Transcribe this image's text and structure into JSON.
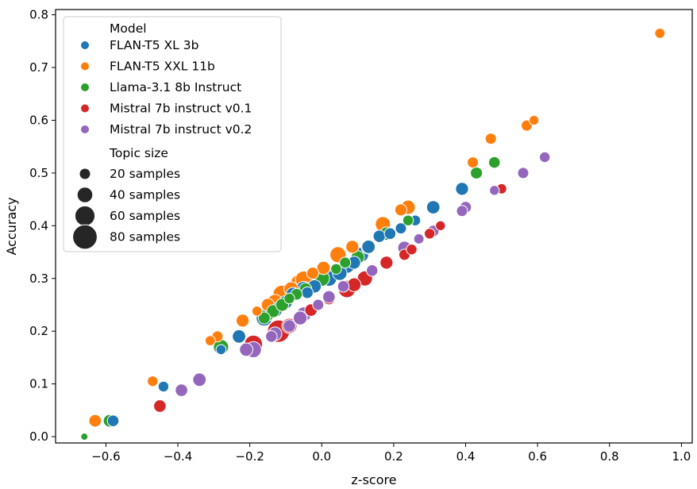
{
  "chart_data": {
    "type": "scatter",
    "title": "",
    "xlabel": "z-score",
    "ylabel": "Accuracy",
    "xlim": [
      -0.74,
      1.03
    ],
    "ylim": [
      -0.012,
      0.81
    ],
    "xticks": [
      "−0.6",
      "−0.4",
      "−0.2",
      "0.0",
      "0.2",
      "0.4",
      "0.6",
      "0.8",
      "1.0"
    ],
    "yticks": [
      "0.0",
      "0.1",
      "0.2",
      "0.3",
      "0.4",
      "0.5",
      "0.6",
      "0.7",
      "0.8"
    ],
    "grid": false,
    "legend": {
      "placement": "upper-left",
      "hue_title": "Model",
      "size_title": "Topic size",
      "size_entries": [
        {
          "label": "20 samples",
          "size": 20
        },
        {
          "label": "40 samples",
          "size": 40
        },
        {
          "label": "60 samples",
          "size": 60
        },
        {
          "label": "80 samples",
          "size": 80
        }
      ]
    },
    "series": [
      {
        "name": "FLAN-T5 XL 3b",
        "color": "#1f77b4",
        "points": [
          [
            -0.58,
            0.03,
            22
          ],
          [
            -0.44,
            0.095,
            18
          ],
          [
            -0.23,
            0.19,
            30
          ],
          [
            -0.28,
            0.165,
            15
          ],
          [
            -0.16,
            0.225,
            42
          ],
          [
            -0.13,
            0.24,
            35
          ],
          [
            -0.1,
            0.255,
            30
          ],
          [
            -0.08,
            0.27,
            32
          ],
          [
            -0.05,
            0.28,
            38
          ],
          [
            -0.02,
            0.285,
            30
          ],
          [
            -0.04,
            0.273,
            22
          ],
          [
            0.02,
            0.3,
            40
          ],
          [
            0.05,
            0.31,
            35
          ],
          [
            0.07,
            0.325,
            42
          ],
          [
            0.09,
            0.33,
            28
          ],
          [
            0.11,
            0.345,
            36
          ],
          [
            0.13,
            0.36,
            30
          ],
          [
            0.16,
            0.38,
            25
          ],
          [
            0.19,
            0.385,
            22
          ],
          [
            0.22,
            0.395,
            20
          ],
          [
            0.26,
            0.41,
            18
          ],
          [
            0.31,
            0.435,
            30
          ],
          [
            0.39,
            0.47,
            28
          ]
        ]
      },
      {
        "name": "FLAN-T5 XXL 11b",
        "color": "#ff7f0e",
        "points": [
          [
            -0.63,
            0.03,
            26
          ],
          [
            -0.47,
            0.105,
            18
          ],
          [
            -0.31,
            0.182,
            16
          ],
          [
            -0.29,
            0.19,
            20
          ],
          [
            -0.22,
            0.22,
            28
          ],
          [
            -0.18,
            0.238,
            15
          ],
          [
            -0.15,
            0.25,
            28
          ],
          [
            -0.13,
            0.255,
            40
          ],
          [
            -0.11,
            0.27,
            52
          ],
          [
            -0.085,
            0.28,
            35
          ],
          [
            -0.06,
            0.29,
            56
          ],
          [
            -0.05,
            0.298,
            46
          ],
          [
            -0.025,
            0.31,
            24
          ],
          [
            0.005,
            0.32,
            30
          ],
          [
            0.045,
            0.345,
            42
          ],
          [
            0.085,
            0.36,
            28
          ],
          [
            0.17,
            0.403,
            38
          ],
          [
            0.22,
            0.43,
            24
          ],
          [
            0.24,
            0.435,
            34
          ],
          [
            0.42,
            0.52,
            20
          ],
          [
            0.47,
            0.565,
            20
          ],
          [
            0.57,
            0.59,
            20
          ],
          [
            0.59,
            0.6,
            14
          ],
          [
            0.94,
            0.765,
            16
          ]
        ]
      },
      {
        "name": "Llama-3.1 8b Instruct",
        "color": "#2ca02c",
        "points": [
          [
            -0.66,
            0.0,
            2
          ],
          [
            -0.59,
            0.03,
            26
          ],
          [
            -0.28,
            0.17,
            38
          ],
          [
            -0.16,
            0.225,
            24
          ],
          [
            -0.15,
            0.232,
            30
          ],
          [
            -0.135,
            0.238,
            28
          ],
          [
            -0.11,
            0.25,
            28
          ],
          [
            -0.09,
            0.262,
            18
          ],
          [
            -0.07,
            0.27,
            22
          ],
          [
            -0.045,
            0.28,
            26
          ],
          [
            0.0,
            0.3,
            40
          ],
          [
            0.04,
            0.318,
            18
          ],
          [
            0.065,
            0.33,
            20
          ],
          [
            0.1,
            0.34,
            30
          ],
          [
            0.13,
            0.36,
            36
          ],
          [
            0.18,
            0.385,
            30
          ],
          [
            0.24,
            0.41,
            18
          ],
          [
            0.43,
            0.5,
            24
          ],
          [
            0.48,
            0.52,
            22
          ]
        ]
      },
      {
        "name": "Mistral 7b instruct v0.1",
        "color": "#d62728",
        "points": [
          [
            -0.45,
            0.058,
            26
          ],
          [
            -0.19,
            0.175,
            52
          ],
          [
            -0.12,
            0.2,
            70
          ],
          [
            -0.09,
            0.21,
            38
          ],
          [
            -0.06,
            0.225,
            34
          ],
          [
            -0.03,
            0.24,
            26
          ],
          [
            0.02,
            0.262,
            26
          ],
          [
            0.07,
            0.28,
            48
          ],
          [
            0.09,
            0.288,
            32
          ],
          [
            0.12,
            0.3,
            38
          ],
          [
            0.18,
            0.33,
            28
          ],
          [
            0.23,
            0.345,
            20
          ],
          [
            0.25,
            0.355,
            18
          ],
          [
            0.3,
            0.385,
            18
          ],
          [
            0.33,
            0.4,
            14
          ],
          [
            0.5,
            0.47,
            16
          ]
        ]
      },
      {
        "name": "Mistral 7b instruct v0.2",
        "color": "#9467bd",
        "points": [
          [
            -0.39,
            0.088,
            26
          ],
          [
            -0.34,
            0.108,
            30
          ],
          [
            -0.21,
            0.165,
            30
          ],
          [
            -0.19,
            0.165,
            42
          ],
          [
            -0.14,
            0.19,
            22
          ],
          [
            -0.13,
            0.195,
            32
          ],
          [
            -0.09,
            0.21,
            26
          ],
          [
            -0.06,
            0.225,
            32
          ],
          [
            -0.05,
            0.232,
            36
          ],
          [
            -0.01,
            0.25,
            20
          ],
          [
            0.02,
            0.265,
            26
          ],
          [
            0.06,
            0.285,
            22
          ],
          [
            0.14,
            0.315,
            22
          ],
          [
            0.23,
            0.358,
            30
          ],
          [
            0.27,
            0.375,
            16
          ],
          [
            0.31,
            0.39,
            22
          ],
          [
            0.39,
            0.428,
            20
          ],
          [
            0.4,
            0.435,
            22
          ],
          [
            0.48,
            0.467,
            14
          ],
          [
            0.56,
            0.5,
            20
          ],
          [
            0.62,
            0.53,
            18
          ]
        ]
      }
    ]
  }
}
